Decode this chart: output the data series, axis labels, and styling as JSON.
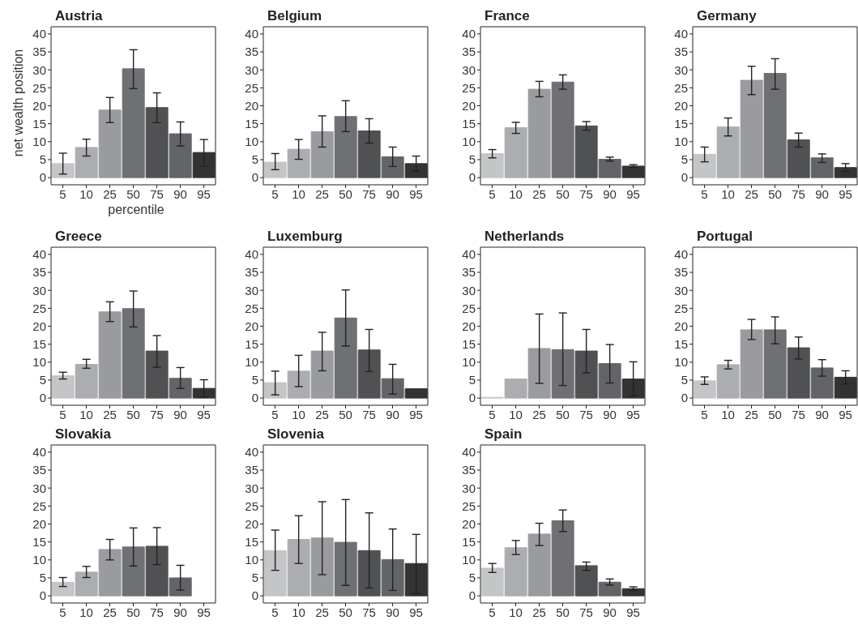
{
  "chart_data": [
    {
      "type": "bar",
      "title": "Austria",
      "xlabel": "percentile",
      "ylabel": "net wealth position",
      "categories": [
        "5",
        "10",
        "25",
        "50",
        "75",
        "90",
        "95"
      ],
      "values": [
        3.9,
        8.4,
        18.8,
        30.3,
        19.5,
        12.2,
        7.0
      ],
      "errors": [
        [
          1.0,
          6.8
        ],
        [
          6.0,
          10.7
        ],
        [
          15.3,
          22.3
        ],
        [
          24.8,
          35.6
        ],
        [
          15.3,
          23.6
        ],
        [
          8.8,
          15.5
        ],
        [
          3.2,
          10.6
        ]
      ],
      "colors": [
        "#c4c5c7",
        "#acadb0",
        "#9a9b9f",
        "#6f7074",
        "#505153",
        "#636467",
        "#333333"
      ],
      "ylim": [
        -2,
        42
      ],
      "yticks": [
        0,
        5,
        10,
        15,
        20,
        25,
        30,
        35,
        40
      ],
      "grid": false
    },
    {
      "type": "bar",
      "title": "Belgium",
      "categories": [
        "5",
        "10",
        "25",
        "50",
        "75",
        "90",
        "95"
      ],
      "values": [
        4.3,
        7.9,
        12.8,
        17.0,
        13.0,
        5.8,
        3.9
      ],
      "errors": [
        [
          2.2,
          6.7
        ],
        [
          5.1,
          10.6
        ],
        [
          8.5,
          17.2
        ],
        [
          12.8,
          21.4
        ],
        [
          9.6,
          16.4
        ],
        [
          3.1,
          8.5
        ],
        [
          1.8,
          6.0
        ]
      ],
      "colors": [
        "#c4c5c7",
        "#acadb0",
        "#9a9b9f",
        "#6f7074",
        "#505153",
        "#636467",
        "#333333"
      ],
      "ylim": [
        -2,
        42
      ],
      "yticks": [
        0,
        5,
        10,
        15,
        20,
        25,
        30,
        35,
        40
      ],
      "grid": false
    },
    {
      "type": "bar",
      "title": "France",
      "categories": [
        "5",
        "10",
        "25",
        "50",
        "75",
        "90",
        "95"
      ],
      "values": [
        6.7,
        13.9,
        24.6,
        26.6,
        14.4,
        5.1,
        3.2
      ],
      "errors": [
        [
          5.5,
          7.8
        ],
        [
          12.3,
          15.4
        ],
        [
          22.5,
          26.8
        ],
        [
          24.6,
          28.6
        ],
        [
          13.2,
          15.6
        ],
        [
          4.6,
          5.7
        ],
        [
          2.8,
          3.6
        ]
      ],
      "colors": [
        "#c4c5c7",
        "#acadb0",
        "#9a9b9f",
        "#6f7074",
        "#505153",
        "#636467",
        "#333333"
      ],
      "ylim": [
        -2,
        42
      ],
      "yticks": [
        0,
        5,
        10,
        15,
        20,
        25,
        30,
        35,
        40
      ],
      "grid": false
    },
    {
      "type": "bar",
      "title": "Germany",
      "categories": [
        "5",
        "10",
        "25",
        "50",
        "75",
        "90",
        "95"
      ],
      "values": [
        6.5,
        14.1,
        27.1,
        29.0,
        10.5,
        5.5,
        2.8
      ],
      "errors": [
        [
          4.4,
          8.5
        ],
        [
          11.6,
          16.6
        ],
        [
          23.1,
          31.0
        ],
        [
          24.6,
          33.1
        ],
        [
          8.5,
          12.4
        ],
        [
          4.2,
          6.6
        ],
        [
          1.7,
          3.9
        ]
      ],
      "colors": [
        "#c4c5c7",
        "#acadb0",
        "#9a9b9f",
        "#6f7074",
        "#505153",
        "#636467",
        "#333333"
      ],
      "ylim": [
        -2,
        42
      ],
      "yticks": [
        0,
        5,
        10,
        15,
        20,
        25,
        30,
        35,
        40
      ],
      "grid": false
    },
    {
      "type": "bar",
      "title": "Greece",
      "categories": [
        "5",
        "10",
        "25",
        "50",
        "75",
        "90",
        "95"
      ],
      "values": [
        6.2,
        9.4,
        24.0,
        24.9,
        13.1,
        5.5,
        2.7
      ],
      "errors": [
        [
          5.3,
          7.2
        ],
        [
          8.3,
          10.8
        ],
        [
          21.3,
          26.8
        ],
        [
          19.8,
          29.8
        ],
        [
          8.6,
          17.4
        ],
        [
          2.7,
          8.5
        ],
        [
          0.3,
          5.1
        ]
      ],
      "colors": [
        "#c4c5c7",
        "#acadb0",
        "#9a9b9f",
        "#6f7074",
        "#505153",
        "#636467",
        "#333333"
      ],
      "ylim": [
        -2,
        42
      ],
      "yticks": [
        0,
        5,
        10,
        15,
        20,
        25,
        30,
        35,
        40
      ],
      "grid": false
    },
    {
      "type": "bar",
      "title": "Luxemburg",
      "categories": [
        "5",
        "10",
        "25",
        "50",
        "75",
        "90",
        "95"
      ],
      "values": [
        4.3,
        7.5,
        13.1,
        22.3,
        13.4,
        5.4,
        2.6
      ],
      "errors": [
        [
          0.9,
          7.5
        ],
        [
          3.2,
          11.9
        ],
        [
          7.6,
          18.3
        ],
        [
          14.5,
          30.1
        ],
        [
          7.4,
          19.1
        ],
        [
          1.1,
          9.4
        ],
        null
      ],
      "colors": [
        "#c4c5c7",
        "#acadb0",
        "#9a9b9f",
        "#6f7074",
        "#505153",
        "#636467",
        "#333333"
      ],
      "ylim": [
        -2,
        42
      ],
      "yticks": [
        0,
        5,
        10,
        15,
        20,
        25,
        30,
        35,
        40
      ],
      "grid": false
    },
    {
      "type": "bar",
      "title": "Netherlands",
      "categories": [
        "5",
        "10",
        "25",
        "50",
        "75",
        "90",
        "95"
      ],
      "values": [
        0.2,
        5.3,
        13.8,
        13.5,
        13.1,
        9.6,
        5.3
      ],
      "errors": [
        null,
        null,
        [
          4.1,
          23.4
        ],
        [
          3.5,
          23.7
        ],
        [
          7.0,
          19.1
        ],
        [
          4.2,
          14.9
        ],
        [
          0.6,
          10.1
        ]
      ],
      "colors": [
        "#c4c5c7",
        "#acadb0",
        "#9a9b9f",
        "#6f7074",
        "#505153",
        "#636467",
        "#333333"
      ],
      "ylim": [
        -2,
        42
      ],
      "yticks": [
        0,
        5,
        10,
        15,
        20,
        25,
        30,
        35,
        40
      ],
      "grid": false
    },
    {
      "type": "bar",
      "title": "Portugal",
      "categories": [
        "5",
        "10",
        "25",
        "50",
        "75",
        "90",
        "95"
      ],
      "values": [
        4.8,
        9.3,
        19.0,
        19.0,
        14.0,
        8.4,
        5.8
      ],
      "errors": [
        [
          3.8,
          5.9
        ],
        [
          8.1,
          10.5
        ],
        [
          16.3,
          21.9
        ],
        [
          15.1,
          22.6
        ],
        [
          10.9,
          17.0
        ],
        [
          6.1,
          10.7
        ],
        [
          3.9,
          7.6
        ]
      ],
      "colors": [
        "#c4c5c7",
        "#acadb0",
        "#9a9b9f",
        "#6f7074",
        "#505153",
        "#636467",
        "#333333"
      ],
      "ylim": [
        -2,
        42
      ],
      "yticks": [
        0,
        5,
        10,
        15,
        20,
        25,
        30,
        35,
        40
      ],
      "grid": false
    },
    {
      "type": "bar",
      "title": "Slovakia",
      "categories": [
        "5",
        "10",
        "25",
        "50",
        "75",
        "90",
        "95"
      ],
      "values": [
        3.8,
        6.6,
        12.9,
        13.6,
        13.8,
        5.0,
        0
      ],
      "errors": [
        [
          2.6,
          5.1
        ],
        [
          5.1,
          8.2
        ],
        [
          10.0,
          15.7
        ],
        [
          8.3,
          18.9
        ],
        [
          8.7,
          19.0
        ],
        [
          1.6,
          8.5
        ],
        null
      ],
      "colors": [
        "#c4c5c7",
        "#acadb0",
        "#9a9b9f",
        "#6f7074",
        "#505153",
        "#636467",
        "#333333"
      ],
      "ylim": [
        -2,
        42
      ],
      "yticks": [
        0,
        5,
        10,
        15,
        20,
        25,
        30,
        35,
        40
      ],
      "grid": false
    },
    {
      "type": "bar",
      "title": "Slovenia",
      "categories": [
        "5",
        "10",
        "25",
        "50",
        "75",
        "90",
        "95"
      ],
      "values": [
        12.6,
        15.7,
        16.1,
        14.9,
        12.6,
        10.1,
        9.0
      ],
      "errors": [
        [
          7.1,
          18.3
        ],
        [
          9.0,
          22.3
        ],
        [
          5.9,
          26.2
        ],
        [
          2.9,
          26.8
        ],
        [
          2.2,
          23.1
        ],
        [
          1.5,
          18.6
        ],
        [
          0.6,
          17.1
        ]
      ],
      "colors": [
        "#c4c5c7",
        "#acadb0",
        "#9a9b9f",
        "#6f7074",
        "#505153",
        "#636467",
        "#333333"
      ],
      "ylim": [
        -2,
        42
      ],
      "yticks": [
        0,
        5,
        10,
        15,
        20,
        25,
        30,
        35,
        40
      ],
      "grid": false
    },
    {
      "type": "bar",
      "title": "Spain",
      "categories": [
        "5",
        "10",
        "25",
        "50",
        "75",
        "90",
        "95"
      ],
      "values": [
        7.7,
        13.4,
        17.2,
        20.9,
        8.4,
        3.8,
        2.0
      ],
      "errors": [
        [
          6.5,
          9.0
        ],
        [
          11.5,
          15.4
        ],
        [
          14.0,
          20.2
        ],
        [
          17.9,
          23.9
        ],
        [
          7.1,
          9.4
        ],
        [
          3.0,
          4.7
        ],
        [
          1.5,
          2.5
        ]
      ],
      "colors": [
        "#c4c5c7",
        "#acadb0",
        "#9a9b9f",
        "#6f7074",
        "#505153",
        "#636467",
        "#333333"
      ],
      "ylim": [
        -2,
        42
      ],
      "yticks": [
        0,
        5,
        10,
        15,
        20,
        25,
        30,
        35,
        40
      ],
      "grid": false
    }
  ]
}
